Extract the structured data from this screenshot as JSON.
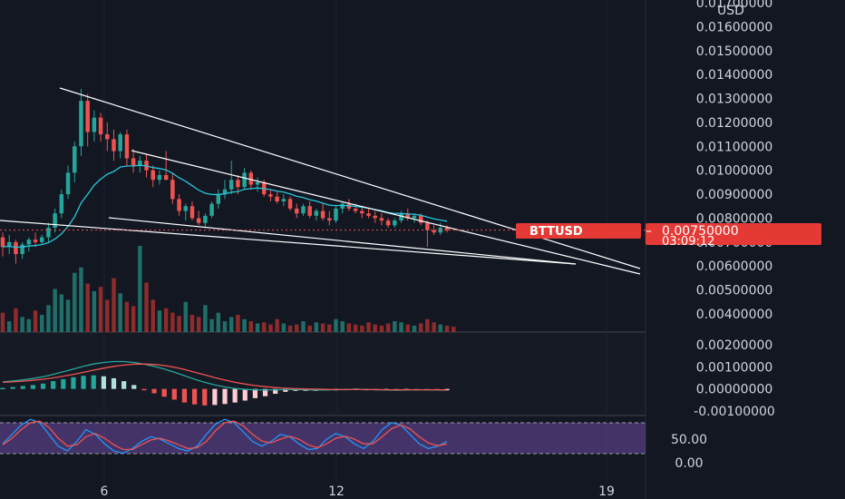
{
  "chart_data": {
    "type": "candlestick",
    "symbol": "BTTUSD",
    "currency": "USD",
    "price_axis": {
      "labels": [
        "0.01700000",
        "0.01600000",
        "0.01500000",
        "0.01400000",
        "0.01300000",
        "0.01200000",
        "0.01100000",
        "0.01000000",
        "0.00900000",
        "0.00800000",
        "0.00700000",
        "0.00600000",
        "0.00500000",
        "0.00400000"
      ],
      "range": [
        0.0035,
        0.0172
      ]
    },
    "time_axis": {
      "labels": [
        "6",
        "12",
        "19"
      ]
    },
    "last_price": {
      "price_label": "0.00750000",
      "countdown": "03:09:12",
      "value": 0.0075
    },
    "macd_axis": {
      "labels": [
        "0.00200000",
        "0.00100000",
        "0.00000000",
        "-0.00100000"
      ]
    },
    "rsi_axis": {
      "labels": [
        "50.00",
        "0.00"
      ]
    },
    "colors": {
      "background": "#131722",
      "up": "#26a69a",
      "down": "#ef5350",
      "ma": "#26c6da",
      "trendline": "#ffffff",
      "price_tag": "#e53935",
      "rsi_band": "#7e57c2",
      "axis_text": "#d1d4dc"
    },
    "candles": [
      [
        0.0072,
        0.0074,
        0.0064,
        0.0068
      ],
      [
        0.0068,
        0.0073,
        0.0065,
        0.007
      ],
      [
        0.007,
        0.0071,
        0.0061,
        0.0065
      ],
      [
        0.0065,
        0.007,
        0.0063,
        0.0069
      ],
      [
        0.0069,
        0.0072,
        0.0066,
        0.0071
      ],
      [
        0.0071,
        0.0074,
        0.0068,
        0.007
      ],
      [
        0.007,
        0.0073,
        0.0069,
        0.0072
      ],
      [
        0.0072,
        0.0078,
        0.007,
        0.0076
      ],
      [
        0.0076,
        0.0084,
        0.0074,
        0.0082
      ],
      [
        0.0082,
        0.0092,
        0.008,
        0.009
      ],
      [
        0.009,
        0.0102,
        0.0088,
        0.0099
      ],
      [
        0.0099,
        0.0112,
        0.0095,
        0.011
      ],
      [
        0.011,
        0.0134,
        0.0106,
        0.0129
      ],
      [
        0.0129,
        0.0132,
        0.011,
        0.0116
      ],
      [
        0.0116,
        0.0125,
        0.0112,
        0.0122
      ],
      [
        0.0122,
        0.0124,
        0.0112,
        0.0115
      ],
      [
        0.0115,
        0.012,
        0.0108,
        0.0113
      ],
      [
        0.0113,
        0.0117,
        0.0104,
        0.0108
      ],
      [
        0.0108,
        0.0116,
        0.0105,
        0.0115
      ],
      [
        0.0115,
        0.0117,
        0.0102,
        0.0105
      ],
      [
        0.0105,
        0.0109,
        0.0099,
        0.0102
      ],
      [
        0.0102,
        0.0106,
        0.0099,
        0.0104
      ],
      [
        0.0104,
        0.0107,
        0.0097,
        0.01
      ],
      [
        0.01,
        0.0102,
        0.0093,
        0.0096
      ],
      [
        0.0096,
        0.01,
        0.0094,
        0.0098
      ],
      [
        0.0098,
        0.0108,
        0.0096,
        0.0096
      ],
      [
        0.0096,
        0.0099,
        0.0086,
        0.0088
      ],
      [
        0.0088,
        0.009,
        0.0081,
        0.0083
      ],
      [
        0.0083,
        0.0086,
        0.0079,
        0.0085
      ],
      [
        0.0085,
        0.0087,
        0.0079,
        0.008
      ],
      [
        0.008,
        0.0083,
        0.0077,
        0.0078
      ],
      [
        0.0078,
        0.0082,
        0.0076,
        0.0081
      ],
      [
        0.0081,
        0.0087,
        0.008,
        0.0086
      ],
      [
        0.0086,
        0.0092,
        0.0084,
        0.009
      ],
      [
        0.009,
        0.0096,
        0.0088,
        0.0092
      ],
      [
        0.0092,
        0.0104,
        0.009,
        0.0096
      ],
      [
        0.0096,
        0.0098,
        0.009,
        0.0093
      ],
      [
        0.0093,
        0.0101,
        0.0092,
        0.0099
      ],
      [
        0.0099,
        0.01,
        0.0092,
        0.0094
      ],
      [
        0.0094,
        0.0097,
        0.0091,
        0.0095
      ],
      [
        0.0095,
        0.0096,
        0.0089,
        0.009
      ],
      [
        0.009,
        0.0092,
        0.0087,
        0.0089
      ],
      [
        0.0089,
        0.0091,
        0.0086,
        0.0087
      ],
      [
        0.0087,
        0.009,
        0.0085,
        0.0088
      ],
      [
        0.0088,
        0.0089,
        0.0083,
        0.0084
      ],
      [
        0.0084,
        0.0086,
        0.008,
        0.0082
      ],
      [
        0.0082,
        0.0086,
        0.0081,
        0.0085
      ],
      [
        0.0085,
        0.0087,
        0.008,
        0.0081
      ],
      [
        0.0081,
        0.0084,
        0.0079,
        0.0083
      ],
      [
        0.0083,
        0.0086,
        0.0079,
        0.008
      ],
      [
        0.008,
        0.0083,
        0.0077,
        0.0079
      ],
      [
        0.0079,
        0.0085,
        0.0078,
        0.0084
      ],
      [
        0.0084,
        0.0087,
        0.0082,
        0.0086
      ],
      [
        0.0086,
        0.0088,
        0.0083,
        0.0084
      ],
      [
        0.0084,
        0.0086,
        0.0082,
        0.0083
      ],
      [
        0.0083,
        0.0085,
        0.008,
        0.0082
      ],
      [
        0.0082,
        0.0084,
        0.008,
        0.0081
      ],
      [
        0.0081,
        0.0083,
        0.0078,
        0.008
      ],
      [
        0.008,
        0.0082,
        0.0077,
        0.0079
      ],
      [
        0.0079,
        0.008,
        0.0076,
        0.0077
      ],
      [
        0.0077,
        0.008,
        0.0076,
        0.0079
      ],
      [
        0.0079,
        0.0083,
        0.0078,
        0.0082
      ],
      [
        0.0082,
        0.0084,
        0.0079,
        0.008
      ],
      [
        0.008,
        0.0082,
        0.0078,
        0.0081
      ],
      [
        0.0081,
        0.0082,
        0.0077,
        0.0078
      ],
      [
        0.0078,
        0.0079,
        0.0068,
        0.0075
      ],
      [
        0.0075,
        0.0077,
        0.0073,
        0.0074
      ],
      [
        0.0074,
        0.0078,
        0.0073,
        0.0076
      ],
      [
        0.0076,
        0.0077,
        0.0074,
        0.0075
      ]
    ],
    "volumes": [
      18,
      10,
      22,
      14,
      12,
      20,
      16,
      25,
      40,
      35,
      30,
      55,
      60,
      45,
      38,
      42,
      30,
      50,
      36,
      28,
      24,
      80,
      46,
      30,
      20,
      22,
      18,
      15,
      28,
      16,
      14,
      25,
      12,
      18,
      10,
      14,
      16,
      12,
      10,
      8,
      9,
      7,
      12,
      8,
      6,
      7,
      10,
      6,
      9,
      8,
      7,
      12,
      10,
      8,
      7,
      6,
      9,
      7,
      6,
      8,
      10,
      9,
      7,
      6,
      8,
      12,
      9,
      7,
      6,
      5
    ],
    "macd": {
      "macd_line": [
        0.00032,
        0.00036,
        0.00041,
        0.00047,
        0.00055,
        0.00066,
        0.00078,
        0.0009,
        0.00102,
        0.00113,
        0.0012,
        0.00124,
        0.00124,
        0.0012,
        0.00112,
        0.00102,
        0.0009,
        0.00076,
        0.0006,
        0.00044,
        0.0003,
        0.00018,
        9e-05,
        2e-05,
        -2e-05,
        -4e-05,
        -5e-05,
        -4e-05,
        -3e-05,
        -3e-05,
        -4e-05,
        -5e-05,
        -5e-05,
        -4e-05,
        -3e-05,
        -2e-05,
        -3e-05,
        -4e-05,
        -5e-05,
        -6e-05,
        -5e-05,
        -4e-05,
        -4e-05,
        -5e-05,
        -6e-05
      ],
      "signal_line": [
        0.0003,
        0.00032,
        0.00035,
        0.00039,
        0.00044,
        0.0005,
        0.00058,
        0.00066,
        0.00075,
        0.00085,
        0.00094,
        0.00102,
        0.00108,
        0.00112,
        0.00113,
        0.00111,
        0.00106,
        0.00098,
        0.00088,
        0.00076,
        0.00064,
        0.00051,
        0.0004,
        0.0003,
        0.00022,
        0.00015,
        0.0001,
        6e-05,
        3e-05,
        1e-05,
        0.0,
        -1e-05,
        -2e-05,
        -3e-05,
        -3e-05,
        -3e-05,
        -3e-05,
        -3e-05,
        -4e-05,
        -4e-05,
        -4e-05,
        -4e-05,
        -4e-05,
        -4e-05,
        -5e-05
      ]
    },
    "rsi": {
      "k": [
        40,
        60,
        80,
        92,
        85,
        60,
        35,
        25,
        45,
        70,
        60,
        40,
        25,
        20,
        30,
        45,
        55,
        50,
        40,
        30,
        25,
        35,
        60,
        82,
        92,
        85,
        65,
        45,
        35,
        45,
        60,
        55,
        40,
        28,
        30,
        50,
        62,
        55,
        40,
        30,
        45,
        70,
        85,
        80,
        60,
        40,
        30,
        35,
        45
      ],
      "d": [
        38,
        52,
        70,
        85,
        88,
        75,
        52,
        35,
        38,
        55,
        62,
        52,
        38,
        28,
        28,
        38,
        48,
        52,
        46,
        38,
        30,
        32,
        45,
        68,
        85,
        88,
        78,
        60,
        46,
        42,
        50,
        56,
        50,
        38,
        32,
        40,
        52,
        56,
        50,
        40,
        40,
        55,
        72,
        80,
        72,
        55,
        42,
        36,
        40
      ]
    }
  }
}
